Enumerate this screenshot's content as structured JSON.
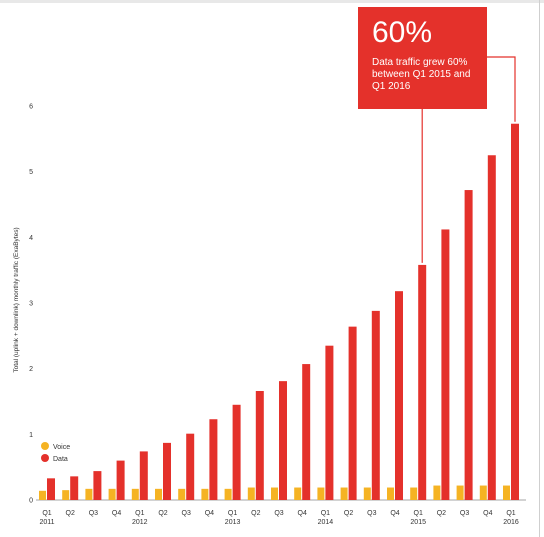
{
  "chart_data": {
    "type": "bar",
    "ylabel": "Total (uplink + downlink) monthly traffic (ExaBytes)",
    "ylim": [
      0,
      6
    ],
    "yticks": [
      0,
      1,
      2,
      3,
      4,
      5,
      6
    ],
    "categories": [
      {
        "quarter": "Q1",
        "year": "2011"
      },
      {
        "quarter": "Q2",
        "year": ""
      },
      {
        "quarter": "Q3",
        "year": ""
      },
      {
        "quarter": "Q4",
        "year": ""
      },
      {
        "quarter": "Q1",
        "year": "2012"
      },
      {
        "quarter": "Q2",
        "year": ""
      },
      {
        "quarter": "Q3",
        "year": ""
      },
      {
        "quarter": "Q4",
        "year": ""
      },
      {
        "quarter": "Q1",
        "year": "2013"
      },
      {
        "quarter": "Q2",
        "year": ""
      },
      {
        "quarter": "Q3",
        "year": ""
      },
      {
        "quarter": "Q4",
        "year": ""
      },
      {
        "quarter": "Q1",
        "year": "2014"
      },
      {
        "quarter": "Q2",
        "year": ""
      },
      {
        "quarter": "Q3",
        "year": ""
      },
      {
        "quarter": "Q4",
        "year": ""
      },
      {
        "quarter": "Q1",
        "year": "2015"
      },
      {
        "quarter": "Q2",
        "year": ""
      },
      {
        "quarter": "Q3",
        "year": ""
      },
      {
        "quarter": "Q4",
        "year": ""
      },
      {
        "quarter": "Q1",
        "year": "2016"
      }
    ],
    "series": [
      {
        "name": "Voice",
        "color": "#f5b323",
        "values": [
          0.14,
          0.15,
          0.17,
          0.17,
          0.17,
          0.17,
          0.17,
          0.17,
          0.17,
          0.19,
          0.19,
          0.19,
          0.19,
          0.19,
          0.19,
          0.19,
          0.19,
          0.22,
          0.22,
          0.22,
          0.22
        ]
      },
      {
        "name": "Data",
        "color": "#e4312b",
        "values": [
          0.33,
          0.36,
          0.44,
          0.6,
          0.74,
          0.87,
          1.01,
          1.23,
          1.45,
          1.66,
          1.81,
          2.07,
          2.35,
          2.64,
          2.88,
          3.18,
          3.58,
          4.12,
          4.72,
          5.25,
          5.73
        ]
      }
    ],
    "legend_position": "bottom-left",
    "annotation": {
      "value": "60%",
      "text": "Data traffic grew 60% between Q1 2015 and Q1 2016",
      "color": "#e4312b"
    }
  }
}
